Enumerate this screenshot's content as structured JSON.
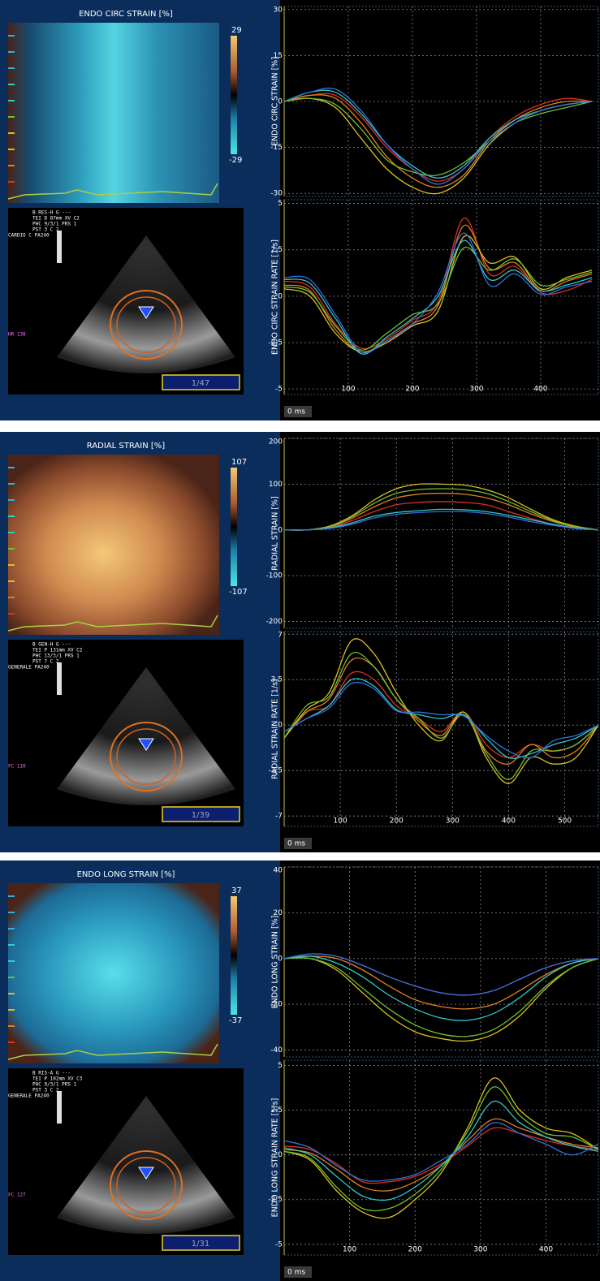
{
  "panels": [
    {
      "heatmap_title": "ENDO CIRC STRAIN [%]",
      "colorbar_max": 29,
      "colorbar_min": -29,
      "header_lines": [
        "B RES-H    G ---",
        "TEI D 87mm  XV  C2",
        "PHC 9/3/1  PRS 1",
        "PST  3     C  2",
        "CARDIO C  PA240"
      ],
      "rate_label": "HR 138",
      "frame": "1/47"
    },
    {
      "heatmap_title": "RADIAL STRAIN [%]",
      "colorbar_max": 107,
      "colorbar_min": -107,
      "header_lines": [
        "B GEN-H    G ---",
        "TEI P 131mm XV  C2",
        "PHC 13/3/1 PRS 1",
        "PST  7     C  2",
        "GENERALE  PA240"
      ],
      "rate_label": "FC 110",
      "frame": "1/39"
    },
    {
      "heatmap_title": "ENDO LONG STRAIN [%]",
      "colorbar_max": 37,
      "colorbar_min": -37,
      "header_lines": [
        "B RIS-A    G ---",
        "TEI P 102mm XV  C3",
        "PHC 9/3/1  PRS 1",
        "PST  3     C  2",
        "GENERALE  PA240"
      ],
      "rate_label": "FC 127",
      "frame": "1/31"
    }
  ],
  "chart_data": [
    {
      "type": "line",
      "y_label": "ENDO CIRC STRAIN [%]",
      "xlim": [
        0,
        490
      ],
      "ylim": [
        -31,
        31
      ],
      "yticks": [
        30,
        15,
        0,
        -15,
        -30
      ],
      "grid": true,
      "x": [
        0,
        40,
        80,
        120,
        160,
        200,
        240,
        280,
        320,
        360,
        400,
        440,
        480
      ],
      "series": [
        {
          "color": "#e03020",
          "values": [
            0,
            2,
            2,
            -5,
            -15,
            -22,
            -26,
            -22,
            -12,
            -5,
            -1,
            1,
            0
          ]
        },
        {
          "color": "#e08020",
          "values": [
            0,
            2,
            1,
            -7,
            -18,
            -25,
            -28,
            -24,
            -13,
            -6,
            -2,
            0,
            0
          ]
        },
        {
          "color": "#d8c020",
          "values": [
            0,
            1,
            -2,
            -12,
            -22,
            -28,
            -30,
            -25,
            -14,
            -7,
            -3,
            -1,
            0
          ]
        },
        {
          "color": "#70c030",
          "values": [
            0,
            1,
            -1,
            -9,
            -19,
            -23,
            -24,
            -20,
            -13,
            -7,
            -4,
            -2,
            0
          ]
        },
        {
          "color": "#30c8c8",
          "values": [
            0,
            3,
            3,
            -4,
            -14,
            -21,
            -25,
            -21,
            -12,
            -6,
            -3,
            -1,
            0
          ]
        },
        {
          "color": "#3070e0",
          "values": [
            0,
            3,
            4,
            -3,
            -14,
            -22,
            -27,
            -22,
            -13,
            -7,
            -3,
            -1,
            0
          ]
        }
      ]
    },
    {
      "type": "line",
      "y_label": "ENDO CIRC STRAIN RATE [1/s]",
      "xlim": [
        0,
        490
      ],
      "ylim": [
        -5.3,
        5.2
      ],
      "yticks": [
        5,
        2.5,
        0,
        -2.5,
        -5
      ],
      "xticks": [
        {
          "value": 0,
          "label": "0 ms"
        },
        100,
        200,
        300,
        400
      ],
      "grid": true,
      "x": [
        0,
        40,
        80,
        120,
        160,
        200,
        240,
        280,
        320,
        360,
        400,
        440,
        480
      ],
      "series": [
        {
          "color": "#e03020",
          "values": [
            0.8,
            0.5,
            -1.5,
            -2.8,
            -2.3,
            -1.3,
            -0.3,
            4.2,
            1.2,
            1.6,
            0.2,
            0.3,
            0.9
          ]
        },
        {
          "color": "#e08020",
          "values": [
            0.6,
            0.3,
            -1.8,
            -3.0,
            -2.4,
            -1.5,
            -0.5,
            3.8,
            1.5,
            1.8,
            0.3,
            0.8,
            1.2
          ]
        },
        {
          "color": "#d8c020",
          "values": [
            0.4,
            0.0,
            -2.0,
            -3.0,
            -2.5,
            -1.6,
            -0.8,
            3.2,
            1.8,
            2.1,
            0.4,
            1.0,
            1.4
          ]
        },
        {
          "color": "#70c030",
          "values": [
            0.5,
            0.2,
            -1.6,
            -2.9,
            -2.0,
            -1.0,
            -0.4,
            2.6,
            1.4,
            2.0,
            0.6,
            0.9,
            1.3
          ]
        },
        {
          "color": "#30c8c8",
          "values": [
            0.9,
            0.7,
            -1.2,
            -3.1,
            -2.2,
            -1.2,
            0.0,
            3.0,
            0.9,
            1.4,
            0.3,
            0.6,
            1.0
          ]
        },
        {
          "color": "#3070e0",
          "values": [
            1.0,
            0.9,
            -1.0,
            -3.0,
            -2.4,
            -1.5,
            0.2,
            3.4,
            0.6,
            1.2,
            0.1,
            0.5,
            0.8
          ]
        }
      ]
    },
    {
      "type": "line",
      "y_label": "RADIAL STRAIN [%]",
      "xlim": [
        0,
        560
      ],
      "ylim": [
        -215,
        200
      ],
      "yticks": [
        200,
        100,
        0,
        -100,
        -200
      ],
      "grid": true,
      "x": [
        0,
        40,
        80,
        120,
        160,
        200,
        240,
        280,
        320,
        360,
        400,
        440,
        480,
        520,
        560
      ],
      "series": [
        {
          "color": "#e03020",
          "values": [
            0,
            0,
            5,
            20,
            40,
            55,
            60,
            62,
            60,
            55,
            40,
            25,
            12,
            5,
            0
          ]
        },
        {
          "color": "#e08020",
          "values": [
            0,
            0,
            6,
            25,
            50,
            70,
            78,
            80,
            78,
            70,
            55,
            35,
            18,
            6,
            0
          ]
        },
        {
          "color": "#d8c020",
          "values": [
            0,
            0,
            8,
            30,
            65,
            90,
            100,
            100,
            98,
            88,
            70,
            45,
            22,
            8,
            0
          ]
        },
        {
          "color": "#70c030",
          "values": [
            0,
            0,
            7,
            28,
            58,
            80,
            88,
            90,
            88,
            80,
            62,
            40,
            20,
            7,
            0
          ]
        },
        {
          "color": "#30c8c8",
          "values": [
            0,
            0,
            4,
            15,
            30,
            38,
            42,
            45,
            44,
            40,
            32,
            22,
            12,
            4,
            0
          ]
        },
        {
          "color": "#3070e0",
          "values": [
            0,
            0,
            3,
            12,
            26,
            34,
            38,
            40,
            40,
            36,
            28,
            18,
            10,
            3,
            0
          ]
        }
      ]
    },
    {
      "type": "line",
      "y_label": "RADIAL STRAIN RATE [1/s]",
      "xlim": [
        0,
        560
      ],
      "ylim": [
        -7.8,
        7.2
      ],
      "yticks": [
        7,
        3.5,
        0,
        -3.5,
        -7
      ],
      "xticks": [
        {
          "value": 0,
          "label": "0 ms"
        },
        100,
        200,
        300,
        400,
        500
      ],
      "grid": true,
      "x": [
        0,
        40,
        80,
        120,
        160,
        200,
        240,
        280,
        320,
        360,
        400,
        440,
        480,
        520,
        560
      ],
      "series": [
        {
          "color": "#e03020",
          "values": [
            -1,
            1,
            1.5,
            4,
            3.5,
            1.5,
            0.5,
            -0.5,
            1,
            -1.5,
            -2.5,
            -1.5,
            -2,
            -1.5,
            0
          ]
        },
        {
          "color": "#e08020",
          "values": [
            -1,
            1,
            2,
            5,
            4.5,
            2,
            0.3,
            -0.8,
            1,
            -2,
            -3,
            -1.5,
            -2.5,
            -2,
            0
          ]
        },
        {
          "color": "#d8c020",
          "values": [
            -1,
            1.2,
            2.5,
            6.5,
            5.5,
            2.5,
            0,
            -1.2,
            1,
            -2.5,
            -4.5,
            -2.5,
            -3,
            -2.5,
            0
          ]
        },
        {
          "color": "#70c030",
          "values": [
            -1,
            1.5,
            2.2,
            5.5,
            4.5,
            2,
            0.5,
            -1,
            0.8,
            -2.2,
            -4.2,
            -2,
            -2,
            -1.5,
            0
          ]
        },
        {
          "color": "#30c8c8",
          "values": [
            -0.5,
            0.5,
            1.5,
            3.5,
            3,
            1.2,
            0.8,
            0.5,
            0.8,
            -1,
            -2.5,
            -2.2,
            -1.5,
            -1,
            0
          ]
        },
        {
          "color": "#3070e0",
          "values": [
            -0.5,
            0.5,
            1.3,
            3.2,
            2.8,
            1.1,
            1,
            0.8,
            0.7,
            -0.8,
            -2,
            -2.5,
            -1.2,
            -0.8,
            0
          ]
        }
      ]
    },
    {
      "type": "line",
      "y_label": "ENDO LONG STRAIN [%]",
      "xlim": [
        0,
        480
      ],
      "ylim": [
        -43,
        40
      ],
      "yticks": [
        40,
        20,
        0,
        -20,
        -40
      ],
      "grid": true,
      "x": [
        0,
        40,
        80,
        120,
        160,
        200,
        240,
        280,
        320,
        360,
        400,
        440,
        480
      ],
      "series": [
        {
          "color": "#e03020",
          "values": [
            0,
            2,
            1,
            -3,
            -8,
            -12,
            -15,
            -16,
            -14,
            -9,
            -4,
            -1,
            0
          ]
        },
        {
          "color": "#e08020",
          "values": [
            0,
            1,
            0,
            -5,
            -12,
            -18,
            -21,
            -22,
            -20,
            -14,
            -7,
            -2,
            0
          ]
        },
        {
          "color": "#d8c020",
          "values": [
            0,
            0,
            -5,
            -15,
            -25,
            -32,
            -35,
            -36,
            -33,
            -25,
            -13,
            -4,
            0
          ]
        },
        {
          "color": "#70c030",
          "values": [
            0,
            0,
            -4,
            -13,
            -22,
            -29,
            -33,
            -34,
            -31,
            -23,
            -12,
            -4,
            0
          ]
        },
        {
          "color": "#30c8c8",
          "values": [
            0,
            1,
            -2,
            -8,
            -16,
            -22,
            -26,
            -27,
            -24,
            -17,
            -8,
            -2,
            0
          ]
        },
        {
          "color": "#3070e0",
          "values": [
            0,
            2,
            1,
            -3,
            -8,
            -12,
            -15,
            -16,
            -14,
            -9,
            -4,
            -1,
            0
          ]
        }
      ]
    },
    {
      "type": "line",
      "y_label": "ENDO LONG STRAIN RATE [1/s]",
      "xlim": [
        0,
        480
      ],
      "ylim": [
        -5.6,
        5.3
      ],
      "yticks": [
        5,
        2.5,
        0,
        -2.5,
        -5
      ],
      "xticks": [
        {
          "value": 0,
          "label": "0 ms"
        },
        100,
        200,
        300,
        400
      ],
      "grid": true,
      "x": [
        0,
        40,
        80,
        120,
        160,
        200,
        240,
        280,
        320,
        360,
        400,
        440,
        480
      ],
      "series": [
        {
          "color": "#e03020",
          "values": [
            0.5,
            0.3,
            -0.5,
            -1.5,
            -1.5,
            -1.2,
            -0.5,
            0.5,
            1.5,
            1.2,
            0.8,
            0.5,
            0.3
          ]
        },
        {
          "color": "#e08020",
          "values": [
            0.3,
            0.1,
            -0.8,
            -1.8,
            -2.0,
            -1.5,
            -0.6,
            0.8,
            2.0,
            1.5,
            1.0,
            0.6,
            0.4
          ]
        },
        {
          "color": "#d8c020",
          "values": [
            0.2,
            -0.3,
            -2.0,
            -3.2,
            -3.5,
            -2.5,
            -1.0,
            1.5,
            4.3,
            2.5,
            1.5,
            1.2,
            0.3
          ]
        },
        {
          "color": "#70c030",
          "values": [
            0.2,
            -0.2,
            -1.8,
            -3.0,
            -3.0,
            -2.2,
            -0.8,
            1.3,
            3.8,
            2.2,
            1.2,
            1.0,
            0.3
          ]
        },
        {
          "color": "#30c8c8",
          "values": [
            0.4,
            0.0,
            -1.2,
            -2.3,
            -2.5,
            -1.8,
            -0.6,
            1.0,
            3.0,
            1.8,
            1.0,
            0.5,
            0.2
          ]
        },
        {
          "color": "#3070e0",
          "values": [
            0.8,
            0.4,
            -0.6,
            -1.4,
            -1.4,
            -1.1,
            -0.3,
            0.6,
            1.8,
            1.2,
            0.6,
            0.0,
            0.6
          ]
        }
      ]
    }
  ]
}
